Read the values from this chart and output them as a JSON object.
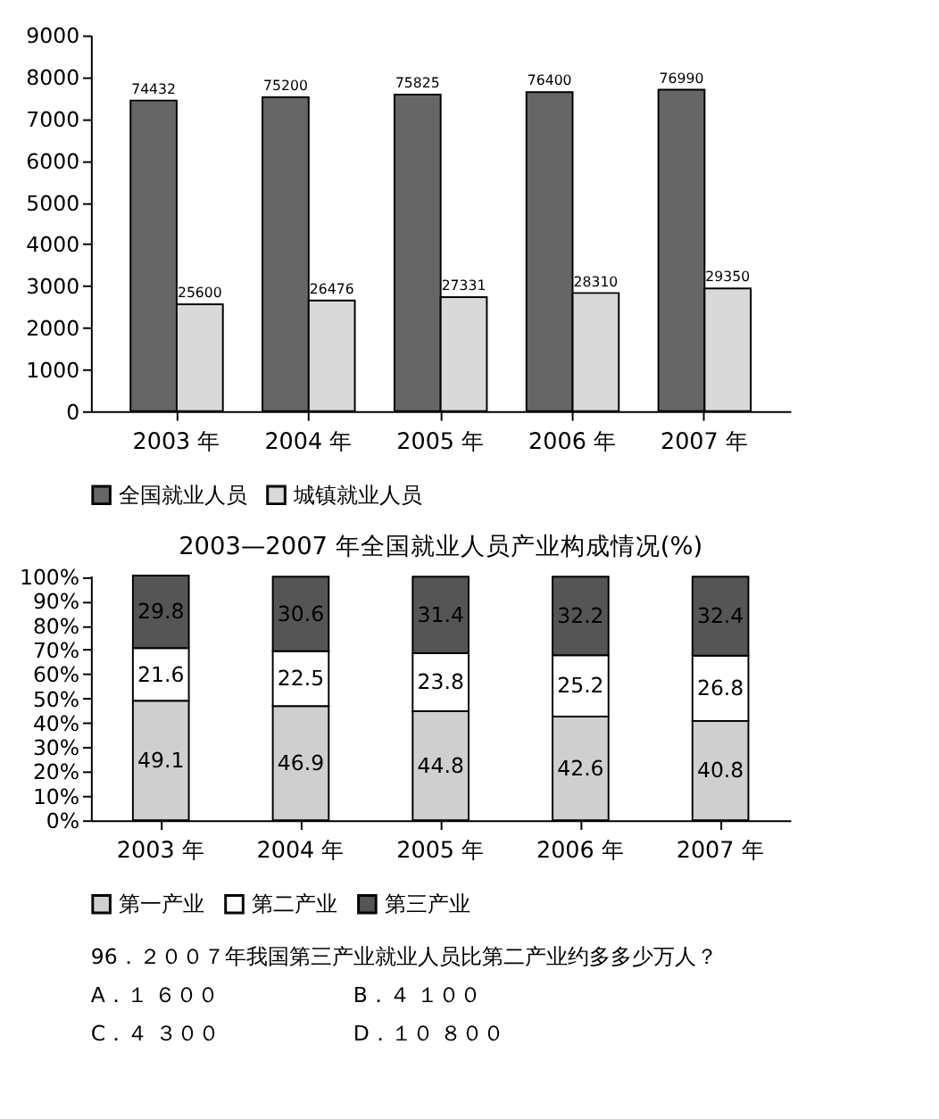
{
  "chart_data": [
    {
      "type": "bar",
      "categories": [
        "2003 年",
        "2004 年",
        "2005 年",
        "2006 年",
        "2007 年"
      ],
      "ylim": [
        0,
        9000
      ],
      "yticks": [
        0,
        1000,
        2000,
        3000,
        4000,
        5000,
        6000,
        7000,
        8000,
        9000
      ],
      "legend": "bottom",
      "series": [
        {
          "name": "全国就业人员",
          "color": "#666666",
          "values": [
            7440,
            7520,
            7580,
            7640,
            7700
          ]
        },
        {
          "name": "城镇就业人员",
          "color": "#d9d9d9",
          "values": [
            2560,
            2650,
            2730,
            2830,
            2940
          ]
        }
      ],
      "annotations": [
        {
          "text": "74432",
          "x": "2003 年",
          "y": 7440
        },
        {
          "text": "75200",
          "x": "2004 年",
          "y": 7520
        },
        {
          "text": "75825",
          "x": "2005 年",
          "y": 7580
        },
        {
          "text": "76400",
          "x": "2006 年",
          "y": 7640
        },
        {
          "text": "76990",
          "x": "2007 年",
          "y": 7700
        },
        {
          "text": "25600",
          "x": "2003 年",
          "y": 2560
        },
        {
          "text": "26476",
          "x": "2004 年",
          "y": 2650
        },
        {
          "text": "27331",
          "x": "2005 年",
          "y": 2730
        },
        {
          "text": "28310",
          "x": "2006 年",
          "y": 2830
        },
        {
          "text": "29350",
          "x": "2007 年",
          "y": 2940
        }
      ]
    },
    {
      "type": "bar",
      "stacked": true,
      "title": "2003—2007 年全国就业人员产业构成情况(%)",
      "categories": [
        "2003 年",
        "2004 年",
        "2005 年",
        "2006 年",
        "2007 年"
      ],
      "ylim": [
        0,
        100.5
      ],
      "yticks": [
        {
          "value": 0,
          "label": "0%"
        },
        {
          "value": 10,
          "label": "10%"
        },
        {
          "value": 20,
          "label": "20%"
        },
        {
          "value": 30,
          "label": "30%"
        },
        {
          "value": 40,
          "label": "40%"
        },
        {
          "value": 50,
          "label": "50%"
        },
        {
          "value": 60,
          "label": "60%"
        },
        {
          "value": 70,
          "label": "70%"
        },
        {
          "value": 80,
          "label": "80%"
        },
        {
          "value": 90,
          "label": "90%"
        },
        {
          "value": 100,
          "label": "100%"
        }
      ],
      "legend": "bottom",
      "data_labels": true,
      "series": [
        {
          "name": "第一产业",
          "color": "#cfcfcf",
          "values": [
            49.1,
            46.9,
            44.8,
            42.6,
            40.8
          ]
        },
        {
          "name": "第二产业",
          "color": "#ffffff",
          "values": [
            21.6,
            22.5,
            23.8,
            25.2,
            26.8
          ]
        },
        {
          "name": "第三产业",
          "color": "#555555",
          "values": [
            29.8,
            30.6,
            31.4,
            32.2,
            32.4
          ]
        }
      ]
    },
    {
      "type": "other",
      "annotations": [
        "96．２００７年我国第三产业就业人员比第二产业约多多少万人？",
        "A．１ ６００",
        "B．４ １００",
        "C．４ ３００",
        "D．１０ ８００"
      ]
    }
  ]
}
